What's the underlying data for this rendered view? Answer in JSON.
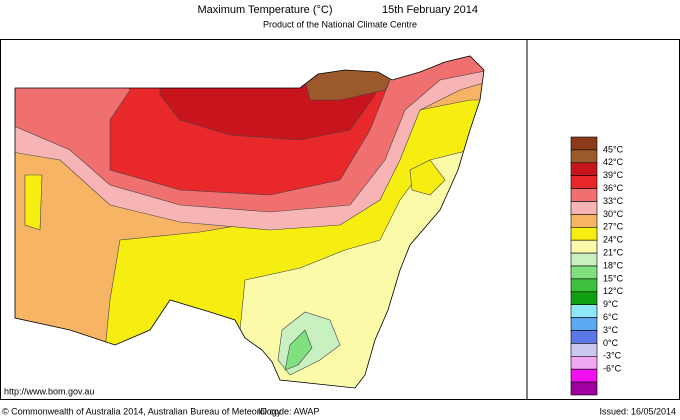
{
  "header": {
    "title": "Maximum Temperature (°C)",
    "date": "15th February 2014",
    "subtitle": "Product of the National Climate Centre"
  },
  "legend": {
    "top_color": "#8b3a1a",
    "items": [
      {
        "label": "45°C",
        "color": "#9c5a2c"
      },
      {
        "label": "42°C",
        "color": "#c8141c"
      },
      {
        "label": "39°C",
        "color": "#e8282a"
      },
      {
        "label": "36°C",
        "color": "#f07070"
      },
      {
        "label": "33°C",
        "color": "#f7b4b4"
      },
      {
        "label": "30°C",
        "color": "#f6b464"
      },
      {
        "label": "27°C",
        "color": "#f6ee10"
      },
      {
        "label": "24°C",
        "color": "#fafaa8"
      },
      {
        "label": "21°C",
        "color": "#c8f0c0"
      },
      {
        "label": "18°C",
        "color": "#7ee07e"
      },
      {
        "label": "15°C",
        "color": "#40c040"
      },
      {
        "label": "12°C",
        "color": "#10a010"
      },
      {
        "label": "9°C",
        "color": "#8ee8f8"
      },
      {
        "label": "6°C",
        "color": "#5aa8f0"
      },
      {
        "label": "3°C",
        "color": "#5a78e8"
      },
      {
        "label": "0°C",
        "color": "#c8c8f0"
      },
      {
        "label": "-3°C",
        "color": "#f0a8f0"
      },
      {
        "label": "-6°C",
        "color": "#f010f0"
      }
    ],
    "bottom_color": "#a000a0"
  },
  "footer": {
    "url": "http://www.bom.gov.au",
    "copyright": "© Commonwealth of Australia 2014, Australian Bureau of Meteorology",
    "id_code": "ID code: AWAP",
    "issued": "Issued: 16/05/2014"
  }
}
